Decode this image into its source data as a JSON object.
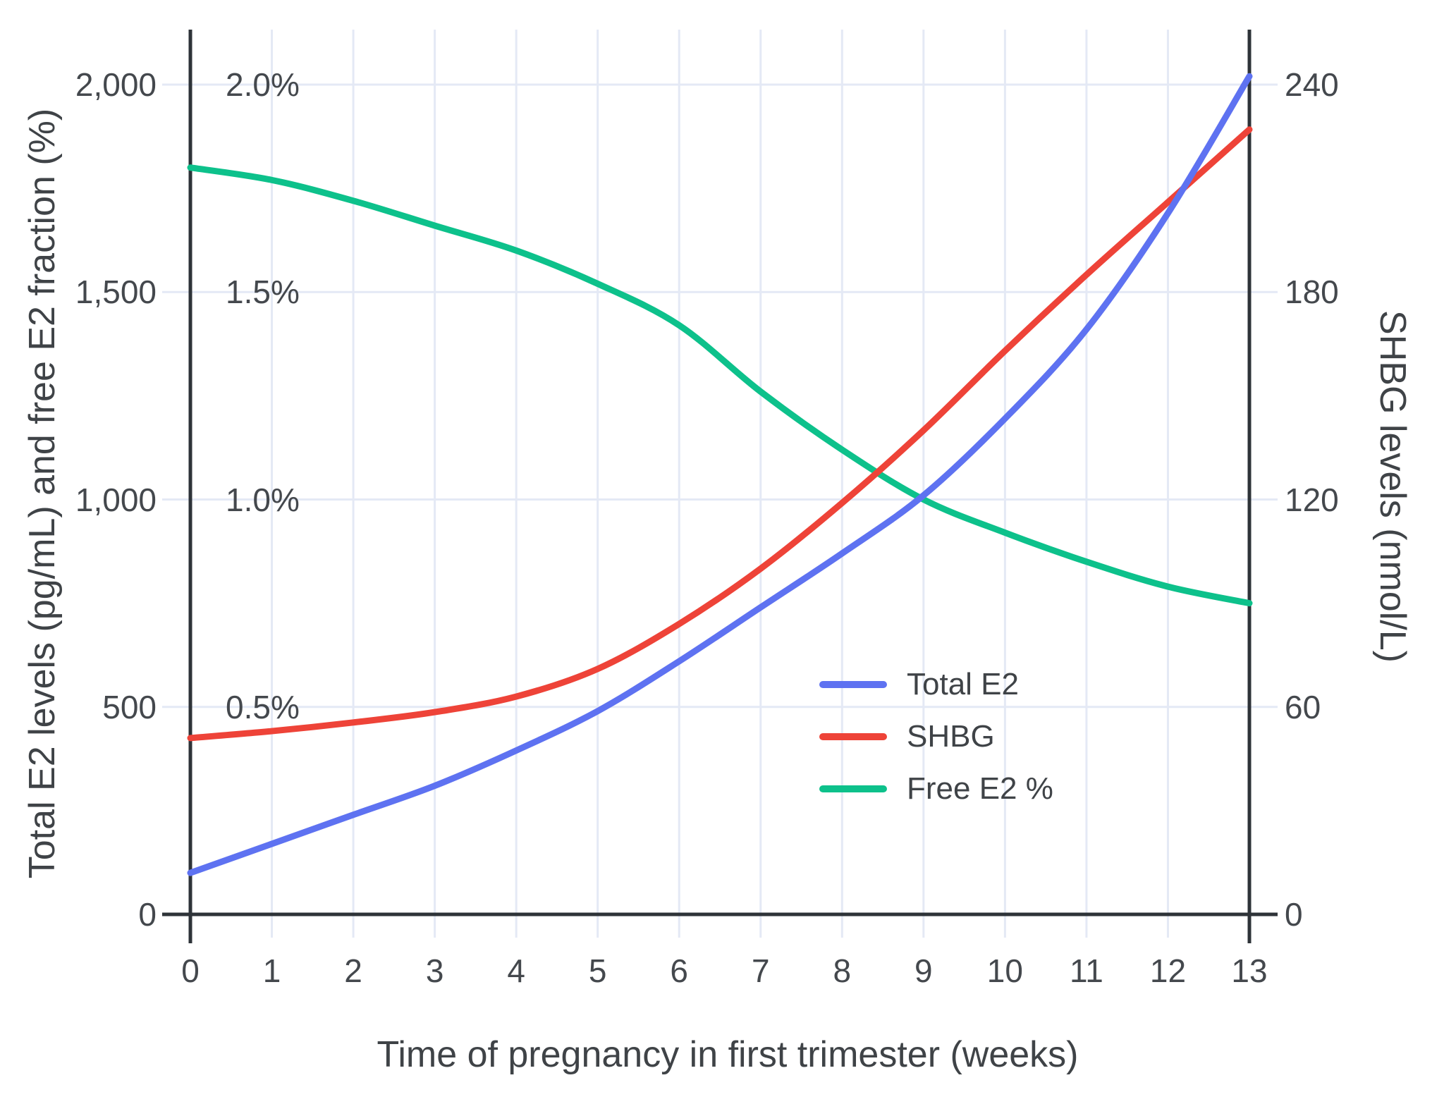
{
  "colors": {
    "background": "#ffffff",
    "grid": "#e4e9f5",
    "axis": "#2e3338",
    "text": "#44484d",
    "total_e2": "#5e72f1",
    "shbg": "#ee4338",
    "free_e2": "#0dc18b"
  },
  "chart_data": {
    "type": "line",
    "title": "",
    "xlabel": "Time of pregnancy in first trimester (weeks)",
    "ylabel_left": "Total E2 levels (pg/mL) and free E2 fraction (%)",
    "ylabel_right": "SHBG levels (nmol/L)",
    "x": [
      0,
      1,
      2,
      3,
      4,
      5,
      6,
      7,
      8,
      9,
      10,
      11,
      12,
      13
    ],
    "x_tick_labels": [
      "0",
      "1",
      "2",
      "3",
      "4",
      "5",
      "6",
      "7",
      "8",
      "9",
      "10",
      "11",
      "12",
      "13"
    ],
    "left_axis": {
      "range": [
        0,
        2000
      ],
      "tick_values": [
        0,
        500,
        1000,
        1500,
        2000
      ],
      "tick_labels": [
        "0",
        "500",
        "1,000",
        "1,500",
        "2,000"
      ]
    },
    "percent_axis": {
      "tick_values": [
        0.5,
        1.0,
        1.5,
        2.0
      ],
      "tick_labels": [
        "0.5%",
        "1.0%",
        "1.5%",
        "2.0%"
      ]
    },
    "right_axis": {
      "range": [
        0,
        240
      ],
      "tick_values": [
        0,
        60,
        120,
        180,
        240
      ],
      "tick_labels": [
        "0",
        "60",
        "120",
        "180",
        "240"
      ]
    },
    "grid": true,
    "legend_position": "inside-right-middle",
    "series": [
      {
        "name": "Total E2",
        "unit": "pg/mL",
        "axis": "left",
        "color": "#5e72f1",
        "values": [
          100,
          170,
          240,
          310,
          395,
          490,
          610,
          740,
          870,
          1010,
          1195,
          1410,
          1690,
          2020
        ]
      },
      {
        "name": "SHBG",
        "unit": "nmol/L",
        "axis": "right",
        "color": "#ee4338",
        "values": [
          51,
          53,
          55.5,
          58.5,
          63,
          71,
          84,
          100,
          119,
          140,
          163,
          185,
          206,
          227
        ]
      },
      {
        "name": "Free E2 %",
        "unit": "%",
        "axis": "percent",
        "color": "#0dc18b",
        "values": [
          1.8,
          1.77,
          1.72,
          1.66,
          1.6,
          1.52,
          1.42,
          1.26,
          1.12,
          1.0,
          0.92,
          0.85,
          0.79,
          0.75
        ]
      }
    ]
  }
}
